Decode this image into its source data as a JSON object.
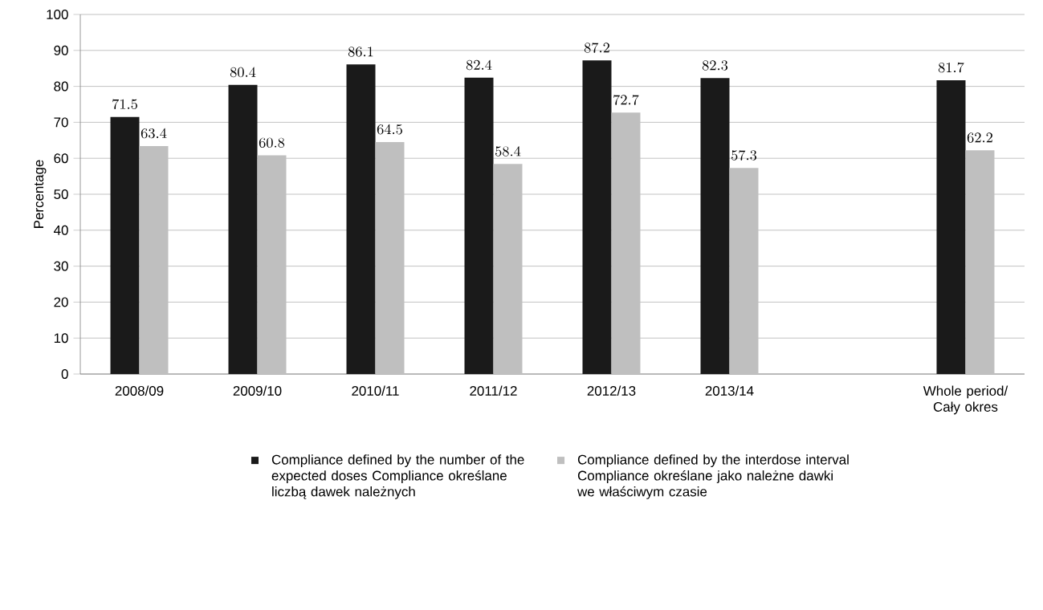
{
  "chart_data": {
    "type": "bar",
    "ylabel": "Percentage",
    "categories": [
      "2008/09",
      "2009/10",
      "2010/11",
      "2011/12",
      "2012/13",
      "2013/14",
      null,
      "Whole period/ Cały okres"
    ],
    "series": [
      {
        "name": "Compliance defined by the number of the expected doses Compliance określane liczbą dawek należnych",
        "color": "#1a1a1a",
        "values": [
          71.5,
          80.4,
          86.1,
          82.4,
          87.2,
          82.3,
          null,
          81.7
        ]
      },
      {
        "name": "Compliance defined by the interdose interval Compliance określane jako należne dawki we właściwym czasie",
        "color": "#bfbfbf",
        "values": [
          63.4,
          60.8,
          64.5,
          58.4,
          72.7,
          57.3,
          null,
          62.2
        ]
      }
    ],
    "ylim": [
      0,
      100
    ],
    "yticks": [
      0,
      10,
      20,
      30,
      40,
      50,
      60,
      70,
      80,
      90,
      100
    ],
    "grid": "y",
    "legend": "bottom",
    "data_labels": true
  }
}
